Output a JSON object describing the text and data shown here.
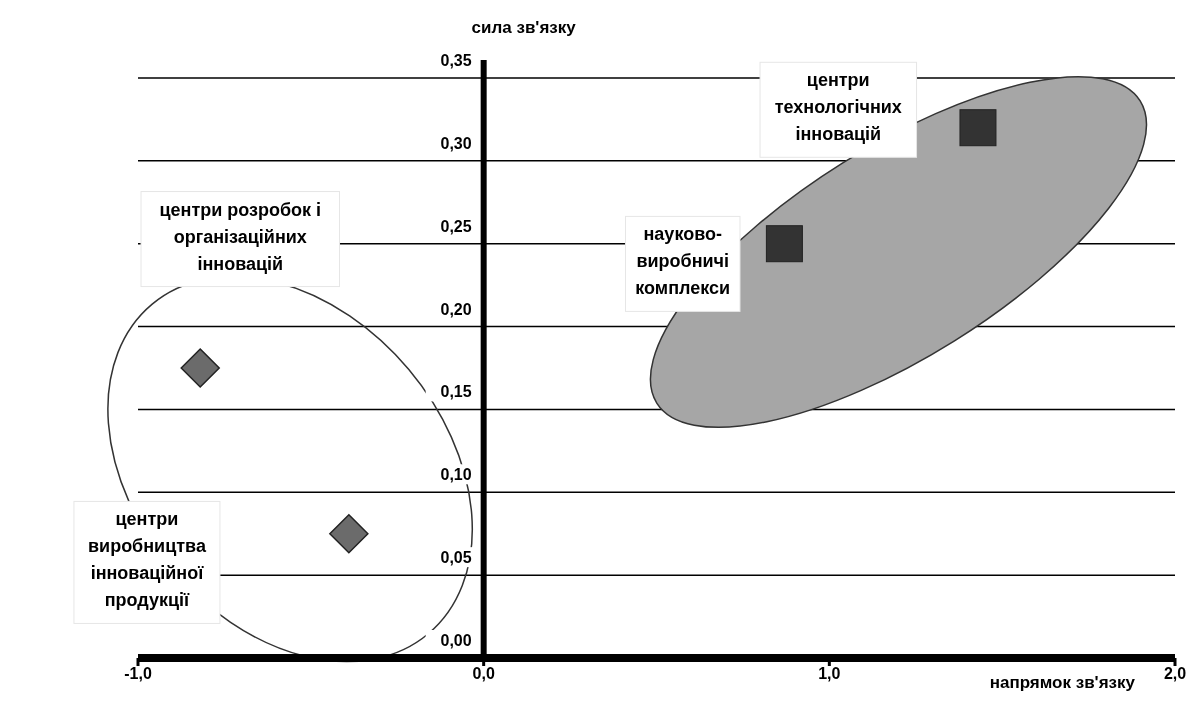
{
  "chart_data": {
    "type": "scatter",
    "xlabel": "напрямок зв'язку",
    "ylabel": "сила зв'язку",
    "xlim": [
      -1,
      2
    ],
    "ylim": [
      0,
      0.35
    ],
    "xticks": [
      {
        "value": -1,
        "label": "-1,0"
      },
      {
        "value": 0,
        "label": "0,0"
      },
      {
        "value": 1,
        "label": "1,0"
      },
      {
        "value": 2,
        "label": "2,0"
      }
    ],
    "yticks": [
      {
        "value": 0,
        "label": "0,00"
      },
      {
        "value": 0.05,
        "label": "0,05"
      },
      {
        "value": 0.1,
        "label": "0,10"
      },
      {
        "value": 0.15,
        "label": "0,15"
      },
      {
        "value": 0.2,
        "label": "0,20"
      },
      {
        "value": 0.25,
        "label": "0,25"
      },
      {
        "value": 0.3,
        "label": "0,30"
      },
      {
        "value": 0.35,
        "label": "0,35"
      }
    ],
    "grid": "y",
    "series": [
      {
        "color": "#6b6b6b",
        "marker": "diamond",
        "x": [
          -0.82,
          -0.39
        ],
        "values": [
          0.175,
          0.075
        ]
      },
      {
        "color": "#333333",
        "marker": "square",
        "x": [
          0.87,
          1.43
        ],
        "values": [
          0.25,
          0.32
        ]
      }
    ],
    "annotations": [
      "центри розробок і\nорганізаційних\nінновацій",
      "центри\nвиробництва\nінноваційної\nпродукції",
      "науково-\nвиробничі\nкомплекси",
      "центри\nтехнологічних\nінновацій"
    ]
  }
}
